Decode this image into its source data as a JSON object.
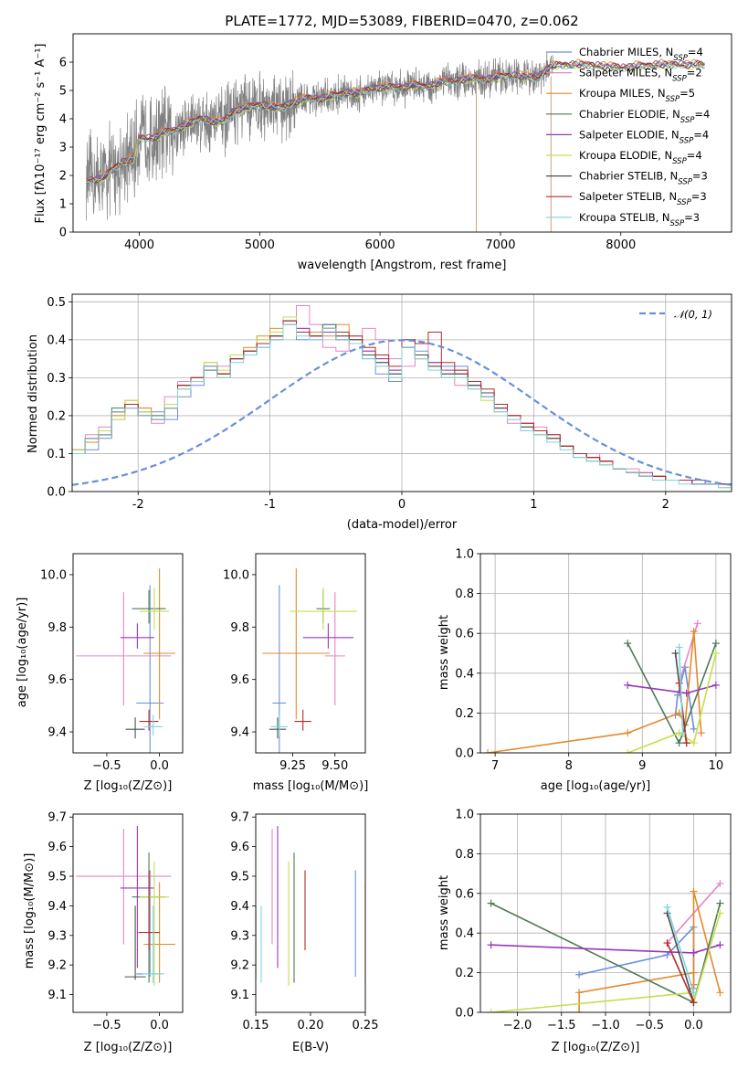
{
  "chart_data": [
    {
      "id": "spectrum",
      "type": "line",
      "title": "PLATE=1772, MJD=53089, FIBERID=0470, z=0.062",
      "xlabel": "wavelength [Angstrom, rest frame]",
      "ylabel": "Flux [fλ10⁻¹⁷ erg cm⁻² s⁻¹ A⁻¹]",
      "xlim": [
        3450,
        8920
      ],
      "ylim": [
        0,
        7
      ],
      "xticks": [
        4000,
        5000,
        6000,
        7000,
        8000
      ],
      "yticks": [
        0,
        1,
        2,
        3,
        4,
        5,
        6
      ],
      "grid": false,
      "legend": "right",
      "data_color": "#808080",
      "continuum": {
        "x": [
          3560,
          3700,
          3800,
          3900,
          3950,
          4000,
          4100,
          4200,
          4300,
          4400,
          4500,
          4600,
          4700,
          4800,
          4900,
          5000,
          5100,
          5200,
          5300,
          5400,
          5500,
          5600,
          5700,
          5800,
          5900,
          6000,
          6100,
          6200,
          6300,
          6400,
          6500,
          6600,
          6700,
          6800,
          6900,
          7000,
          7100,
          7200,
          7300,
          7400,
          7500,
          7700,
          8000,
          8300,
          8600,
          8700
        ],
        "y": [
          1.8,
          1.9,
          2.3,
          2.5,
          2.6,
          3.3,
          3.3,
          3.5,
          3.6,
          3.8,
          4.0,
          3.9,
          3.9,
          4.3,
          4.4,
          4.5,
          4.4,
          4.4,
          4.6,
          4.7,
          4.7,
          4.8,
          4.9,
          4.9,
          5.0,
          5.1,
          5.1,
          5.1,
          5.2,
          5.1,
          5.3,
          5.3,
          5.4,
          5.4,
          5.4,
          5.5,
          5.5,
          5.5,
          5.4,
          5.8,
          5.9,
          5.9,
          5.8,
          5.9,
          5.9,
          5.9
        ]
      }
    },
    {
      "id": "residuals",
      "type": "line",
      "xlabel": "(data-model)/error",
      "ylabel": "Normed distribution",
      "xlim": [
        -2.5,
        2.5
      ],
      "ylim": [
        0,
        0.52
      ],
      "xticks": [
        -2,
        -1,
        0,
        1,
        2
      ],
      "yticks": [
        0.0,
        0.1,
        0.2,
        0.3,
        0.4,
        0.5
      ],
      "grid": true,
      "legend": "top-right",
      "legend_label": "𝒩(0, 1)",
      "bin_width": 0.1
    },
    {
      "id": "age_vs_Z",
      "type": "scatter",
      "xlabel": "Z [log₁₀(Z/Z⊙)]",
      "ylabel": "age  [log₁₀(age/yr)]",
      "xlim": [
        -0.82,
        0.22
      ],
      "ylim": [
        9.32,
        10.08
      ],
      "xticks": [
        -0.5,
        0.0
      ],
      "yticks": [
        9.4,
        9.6,
        9.8,
        10.0
      ],
      "grid": false
    },
    {
      "id": "age_vs_mass",
      "type": "scatter",
      "xlabel": "mass [log₁₀(M/M⊙)]",
      "xlim": [
        9.03,
        9.68
      ],
      "ylim": [
        9.32,
        10.08
      ],
      "xticks": [
        9.25,
        9.5
      ],
      "yticks": [
        9.4,
        9.6,
        9.8,
        10.0
      ],
      "grid": false
    },
    {
      "id": "weight_vs_age",
      "type": "line",
      "xlabel": "age  [log₁₀(age/yr)]",
      "ylabel": "mass weight",
      "xlim": [
        6.8,
        10.2
      ],
      "ylim": [
        0,
        1
      ],
      "xticks": [
        7,
        8,
        9,
        10
      ],
      "yticks": [
        0.0,
        0.2,
        0.4,
        0.6,
        0.8,
        1.0
      ],
      "grid": true
    },
    {
      "id": "mass_vs_Z",
      "type": "scatter",
      "xlabel": "Z [log₁₀(Z/Z⊙)]",
      "ylabel": "mass [log₁₀(M/M⊙)]",
      "xlim": [
        -0.82,
        0.22
      ],
      "ylim": [
        9.04,
        9.71
      ],
      "xticks": [
        -0.5,
        0.0
      ],
      "yticks": [
        9.1,
        9.2,
        9.3,
        9.4,
        9.5,
        9.6,
        9.7
      ],
      "grid": false
    },
    {
      "id": "mass_vs_ebv",
      "type": "scatter",
      "xlabel": "E(B-V)",
      "xlim": [
        0.15,
        0.25
      ],
      "ylim": [
        9.04,
        9.71
      ],
      "xticks": [
        0.15,
        0.2,
        0.25
      ],
      "yticks": [
        9.1,
        9.2,
        9.3,
        9.4,
        9.5,
        9.6,
        9.7
      ],
      "grid": false
    },
    {
      "id": "weight_vs_Z",
      "type": "line",
      "xlabel": "Z [log₁₀(Z/Z⊙)]",
      "ylabel": "mass weight",
      "xlim": [
        -2.42,
        0.42
      ],
      "ylim": [
        0,
        1
      ],
      "xticks": [
        -2.0,
        -1.5,
        -1.0,
        -0.5,
        0.0
      ],
      "yticks": [
        0.0,
        0.2,
        0.4,
        0.6,
        0.8,
        1.0
      ],
      "grid": true
    }
  ],
  "models": [
    {
      "name": "Chabrier MILES, N_SSP=4",
      "label_pre": "Chabrier MILES, N",
      "label_sub": "SSP",
      "label_post": "=4",
      "color": "#6b8fd9",
      "fit": {
        "age": 9.51,
        "age_err": 0.5,
        "Z": -0.09,
        "Z_err": 0.13,
        "mass": 9.17,
        "mass_err": 0.04,
        "ebv": 0.241,
        "mass_lo": 9.16,
        "mass_hi": 9.52
      },
      "ssp": [
        [
          9.45,
          -1.3,
          0.19
        ],
        [
          9.48,
          -0.3,
          0.29
        ],
        [
          9.58,
          0.0,
          0.43
        ],
        [
          9.7,
          0.0,
          0.12
        ]
      ],
      "hist": [
        0.02,
        0.03,
        0.04,
        0.04,
        0.05,
        0.05,
        0.06,
        0.07,
        0.07,
        0.07,
        0.1,
        0.11,
        0.14,
        0.2,
        0.23,
        0.2,
        0.21,
        0.19,
        0.25,
        0.28,
        0.33,
        0.31,
        0.35,
        0.36,
        0.38,
        0.41,
        0.45,
        0.4,
        0.4,
        0.44,
        0.41,
        0.39,
        0.35,
        0.31,
        0.29,
        0.4,
        0.37,
        0.34,
        0.33,
        0.33,
        0.29,
        0.25,
        0.22,
        0.2,
        0.17,
        0.15,
        0.15,
        0.12,
        0.09,
        0.08,
        0.07,
        0.06,
        0.05,
        0.04,
        0.04,
        0.03,
        0.03,
        0.02,
        0.02,
        0.02,
        0.01,
        0.01,
        0.01,
        0.01,
        0.01,
        0.01,
        0.01,
        0.0,
        0.0,
        0.0
      ],
      "spec_offset": 0.0
    },
    {
      "name": "Salpeter MILES, N_SSP=2",
      "label_pre": "Salpeter MILES, N",
      "label_sub": "SSP",
      "label_post": "=2",
      "color": "#e586c4",
      "fit": {
        "age": 9.69,
        "age_err": 0.27,
        "Z": -0.34,
        "Z_err": 0.45,
        "mass": 9.5,
        "mass_err": 0.06,
        "ebv": 0.165,
        "mass_lo": 9.27,
        "mass_hi": 9.66
      },
      "ssp": [
        [
          9.5,
          -0.3,
          0.35
        ],
        [
          9.75,
          0.3,
          0.65
        ]
      ],
      "hist": [
        0.03,
        0.03,
        0.04,
        0.05,
        0.05,
        0.06,
        0.07,
        0.08,
        0.09,
        0.1,
        0.11,
        0.15,
        0.17,
        0.19,
        0.22,
        0.22,
        0.18,
        0.25,
        0.29,
        0.3,
        0.34,
        0.33,
        0.35,
        0.37,
        0.4,
        0.42,
        0.45,
        0.49,
        0.44,
        0.38,
        0.37,
        0.41,
        0.43,
        0.4,
        0.35,
        0.33,
        0.39,
        0.34,
        0.3,
        0.28,
        0.27,
        0.26,
        0.21,
        0.18,
        0.18,
        0.17,
        0.15,
        0.12,
        0.1,
        0.1,
        0.07,
        0.06,
        0.06,
        0.04,
        0.04,
        0.03,
        0.03,
        0.03,
        0.02,
        0.02,
        0.01,
        0.01,
        0.01,
        0.01,
        0.01,
        0.01,
        0.01,
        0.0,
        0.0,
        0.0
      ],
      "spec_offset": 0.05
    },
    {
      "name": "Kroupa MILES, N_SSP=5",
      "label_pre": "Kroupa MILES, N",
      "label_sub": "SSP",
      "label_post": "=5",
      "color": "#e38a2c",
      "fit": {
        "age": 9.7,
        "age_err": 0.36,
        "Z": 0.0,
        "Z_err": 0.15,
        "mass": 9.27,
        "mass_err": 0.2,
        "ebv": 0.25,
        "mass_lo": 9.14,
        "mass_hi": 9.48
      },
      "ssp": [
        [
          6.9,
          -1.3,
          0.0
        ],
        [
          8.8,
          -1.3,
          0.1
        ],
        [
          9.5,
          0.0,
          0.2
        ],
        [
          9.58,
          0.0,
          0.14
        ],
        [
          9.7,
          0.0,
          0.61
        ],
        [
          9.8,
          0.3,
          0.1
        ]
      ],
      "hist": [
        0.02,
        0.03,
        0.03,
        0.04,
        0.05,
        0.05,
        0.06,
        0.07,
        0.08,
        0.09,
        0.1,
        0.13,
        0.15,
        0.2,
        0.24,
        0.22,
        0.2,
        0.22,
        0.27,
        0.3,
        0.33,
        0.3,
        0.36,
        0.38,
        0.41,
        0.43,
        0.45,
        0.43,
        0.42,
        0.41,
        0.44,
        0.4,
        0.37,
        0.35,
        0.32,
        0.38,
        0.36,
        0.34,
        0.31,
        0.32,
        0.28,
        0.25,
        0.23,
        0.2,
        0.17,
        0.16,
        0.14,
        0.12,
        0.1,
        0.09,
        0.08,
        0.06,
        0.05,
        0.04,
        0.04,
        0.03,
        0.03,
        0.02,
        0.02,
        0.02,
        0.01,
        0.01,
        0.01,
        0.01,
        0.01,
        0.01,
        0.01,
        0.0,
        0.0,
        0.0
      ],
      "spec_offset": 0.08
    },
    {
      "name": "Chabrier ELODIE, N_SSP=4",
      "label_pre": "Chabrier ELODIE, N",
      "label_sub": "SSP",
      "label_post": "=4",
      "color": "#4e7a56",
      "fit": {
        "age": 9.87,
        "age_err": 0.08,
        "Z": -0.1,
        "Z_err": 0.16,
        "mass": 9.43,
        "mass_err": 0.04,
        "ebv": 0.185,
        "mass_lo": 9.14,
        "mass_hi": 9.58
      },
      "ssp": [
        [
          8.8,
          -2.3,
          0.55
        ],
        [
          9.5,
          0.0,
          0.05
        ],
        [
          10.0,
          0.3,
          0.55
        ]
      ],
      "hist": [
        0.02,
        0.03,
        0.03,
        0.04,
        0.05,
        0.05,
        0.06,
        0.07,
        0.08,
        0.09,
        0.1,
        0.14,
        0.15,
        0.22,
        0.23,
        0.21,
        0.2,
        0.22,
        0.28,
        0.3,
        0.32,
        0.31,
        0.35,
        0.37,
        0.39,
        0.41,
        0.45,
        0.42,
        0.41,
        0.44,
        0.4,
        0.39,
        0.36,
        0.34,
        0.31,
        0.38,
        0.36,
        0.33,
        0.31,
        0.31,
        0.28,
        0.26,
        0.22,
        0.2,
        0.17,
        0.16,
        0.14,
        0.12,
        0.1,
        0.09,
        0.08,
        0.06,
        0.05,
        0.04,
        0.04,
        0.03,
        0.03,
        0.02,
        0.02,
        0.02,
        0.01,
        0.01,
        0.01,
        0.01,
        0.01,
        0.01,
        0.01,
        0.0,
        0.0,
        0.0
      ],
      "spec_offset": 0.0
    },
    {
      "name": "Salpeter ELODIE, N_SSP=4",
      "label_pre": "Salpeter ELODIE, N",
      "label_sub": "SSP",
      "label_post": "=4",
      "color": "#9a37b8",
      "fit": {
        "age": 9.76,
        "age_err": 0.06,
        "Z": -0.21,
        "Z_err": 0.16,
        "mass": 9.46,
        "mass_err": 0.15,
        "ebv": 0.17,
        "mass_lo": 9.19,
        "mass_hi": 9.67
      },
      "ssp": [
        [
          8.8,
          -2.3,
          0.34
        ],
        [
          9.6,
          0.0,
          0.3
        ],
        [
          10.0,
          0.3,
          0.34
        ]
      ],
      "hist": [
        0.04,
        0.03,
        0.03,
        0.04,
        0.05,
        0.06,
        0.06,
        0.07,
        0.08,
        0.09,
        0.11,
        0.14,
        0.16,
        0.21,
        0.22,
        0.2,
        0.19,
        0.23,
        0.28,
        0.29,
        0.33,
        0.31,
        0.35,
        0.37,
        0.39,
        0.4,
        0.44,
        0.43,
        0.41,
        0.42,
        0.4,
        0.4,
        0.37,
        0.35,
        0.32,
        0.38,
        0.35,
        0.34,
        0.32,
        0.31,
        0.28,
        0.25,
        0.22,
        0.2,
        0.18,
        0.16,
        0.14,
        0.12,
        0.1,
        0.09,
        0.08,
        0.06,
        0.05,
        0.05,
        0.04,
        0.03,
        0.03,
        0.03,
        0.02,
        0.02,
        0.02,
        0.01,
        0.01,
        0.01,
        0.01,
        0.01,
        0.01,
        0.01,
        0.0,
        0.0
      ],
      "spec_offset": 0.03
    },
    {
      "name": "Kroupa ELODIE, N_SSP=4",
      "label_pre": "Kroupa ELODIE, N",
      "label_sub": "SSP",
      "label_post": "=4",
      "color": "#c5e04c",
      "fit": {
        "age": 9.86,
        "age_err": 0.1,
        "Z": -0.05,
        "Z_err": 0.14,
        "mass": 9.43,
        "mass_err": 0.2,
        "ebv": 0.18,
        "mass_lo": 9.13,
        "mass_hi": 9.55
      },
      "ssp": [
        [
          8.8,
          -2.3,
          0.0
        ],
        [
          9.5,
          0.0,
          0.1
        ],
        [
          9.7,
          0.0,
          0.05
        ],
        [
          10.0,
          0.3,
          0.5
        ]
      ],
      "hist": [
        0.02,
        0.03,
        0.03,
        0.04,
        0.05,
        0.06,
        0.06,
        0.07,
        0.08,
        0.09,
        0.11,
        0.14,
        0.16,
        0.19,
        0.24,
        0.21,
        0.19,
        0.23,
        0.27,
        0.3,
        0.34,
        0.32,
        0.36,
        0.37,
        0.4,
        0.42,
        0.46,
        0.42,
        0.41,
        0.43,
        0.41,
        0.39,
        0.36,
        0.33,
        0.3,
        0.38,
        0.35,
        0.33,
        0.31,
        0.3,
        0.27,
        0.24,
        0.21,
        0.19,
        0.17,
        0.15,
        0.14,
        0.12,
        0.1,
        0.08,
        0.07,
        0.06,
        0.05,
        0.04,
        0.04,
        0.03,
        0.03,
        0.02,
        0.02,
        0.01,
        0.01,
        0.01,
        0.01,
        0.01,
        0.01,
        0.01,
        0.01,
        0.0,
        0.0,
        0.0
      ],
      "spec_offset": -0.05
    },
    {
      "name": "Chabrier STELIB, N_SSP=3",
      "label_pre": "Chabrier STELIB, N",
      "label_sub": "SSP",
      "label_post": "=3",
      "color": "#4d4d4d",
      "fit": {
        "age": 9.41,
        "age_err": 0.0,
        "Z": -0.23,
        "Z_err": 0.0,
        "mass": 9.16,
        "mass_err": 0.0,
        "ebv": 0.15,
        "mass_lo": 9.15,
        "mass_hi": 9.4
      },
      "ssp": [
        [
          9.45,
          -0.3,
          0.5
        ],
        [
          9.6,
          0.0,
          0.05
        ]
      ],
      "hist": [
        0.02,
        0.03,
        0.03,
        0.04,
        0.05,
        0.05,
        0.06,
        0.07,
        0.08,
        0.09,
        0.1,
        0.14,
        0.15,
        0.21,
        0.23,
        0.2,
        0.19,
        0.22,
        0.28,
        0.3,
        0.33,
        0.31,
        0.35,
        0.37,
        0.39,
        0.41,
        0.45,
        0.42,
        0.41,
        0.43,
        0.41,
        0.4,
        0.36,
        0.34,
        0.31,
        0.38,
        0.36,
        0.33,
        0.31,
        0.31,
        0.28,
        0.26,
        0.22,
        0.2,
        0.17,
        0.16,
        0.14,
        0.12,
        0.1,
        0.09,
        0.08,
        0.06,
        0.05,
        0.04,
        0.04,
        0.03,
        0.03,
        0.02,
        0.02,
        0.02,
        0.01,
        0.01,
        0.01,
        0.01,
        0.01,
        0.01,
        0.01,
        0.0,
        0.0,
        0.0
      ],
      "spec_offset": 0.0
    },
    {
      "name": "Salpeter STELIB, N_SSP=3",
      "label_pre": "Salpeter STELIB, N",
      "label_sub": "SSP",
      "label_post": "=3",
      "color": "#b52b2b",
      "fit": {
        "age": 9.44,
        "age_err": 0.0,
        "Z": -0.1,
        "Z_err": 0.0,
        "mass": 9.31,
        "mass_err": 0.0,
        "ebv": 0.195,
        "mass_lo": 9.25,
        "mass_hi": 9.52
      },
      "ssp": [
        [
          9.5,
          -0.3,
          0.35
        ],
        [
          9.6,
          0.0,
          0.05
        ]
      ],
      "hist": [
        0.02,
        0.03,
        0.03,
        0.04,
        0.05,
        0.05,
        0.06,
        0.07,
        0.08,
        0.09,
        0.1,
        0.14,
        0.15,
        0.21,
        0.23,
        0.2,
        0.19,
        0.22,
        0.28,
        0.3,
        0.33,
        0.31,
        0.35,
        0.37,
        0.39,
        0.41,
        0.45,
        0.42,
        0.41,
        0.43,
        0.42,
        0.41,
        0.38,
        0.36,
        0.33,
        0.4,
        0.39,
        0.42,
        0.34,
        0.32,
        0.29,
        0.27,
        0.23,
        0.2,
        0.18,
        0.16,
        0.15,
        0.12,
        0.1,
        0.09,
        0.08,
        0.06,
        0.05,
        0.04,
        0.04,
        0.03,
        0.03,
        0.02,
        0.02,
        0.02,
        0.01,
        0.01,
        0.01,
        0.01,
        0.01,
        0.01,
        0.01,
        0.0,
        0.0,
        0.0
      ],
      "spec_offset": 0.02
    },
    {
      "name": "Kroupa STELIB, N_SSP=3",
      "label_pre": "Kroupa STELIB, N",
      "label_sub": "SSP",
      "label_post": "=3",
      "color": "#7fd3dd",
      "fit": {
        "age": 9.42,
        "age_err": 0.0,
        "Z": -0.06,
        "Z_err": 0.0,
        "mass": 9.17,
        "mass_err": 0.0,
        "ebv": 0.155,
        "mass_lo": 9.14,
        "mass_hi": 9.4
      },
      "ssp": [
        [
          9.5,
          -0.3,
          0.53
        ],
        [
          9.55,
          0.0,
          0.1
        ]
      ],
      "hist": [
        0.02,
        0.03,
        0.03,
        0.04,
        0.05,
        0.05,
        0.06,
        0.07,
        0.08,
        0.09,
        0.1,
        0.14,
        0.15,
        0.21,
        0.22,
        0.2,
        0.19,
        0.22,
        0.27,
        0.29,
        0.33,
        0.3,
        0.34,
        0.36,
        0.38,
        0.4,
        0.44,
        0.41,
        0.4,
        0.43,
        0.4,
        0.39,
        0.35,
        0.33,
        0.3,
        0.38,
        0.35,
        0.32,
        0.3,
        0.3,
        0.27,
        0.25,
        0.21,
        0.19,
        0.16,
        0.15,
        0.13,
        0.11,
        0.09,
        0.08,
        0.07,
        0.06,
        0.05,
        0.04,
        0.03,
        0.03,
        0.02,
        0.02,
        0.02,
        0.01,
        0.01,
        0.01,
        0.01,
        0.01,
        0.01,
        0.01,
        0.0,
        0.0,
        0.0,
        0.0
      ],
      "spec_offset": -0.02
    }
  ]
}
